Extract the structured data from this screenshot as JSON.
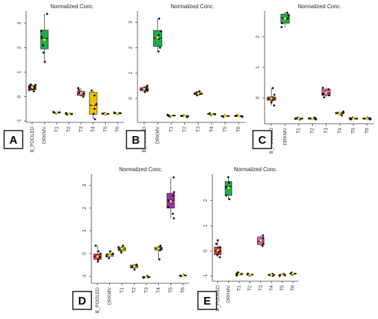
{
  "chart_data": [
    {
      "panel_label": "A",
      "type": "boxplot",
      "title": "Normalized Conc.",
      "categories": [
        "B_POOLED",
        "DRKMV",
        "T1",
        "T2",
        "T3",
        "T4",
        "T5",
        "T6"
      ],
      "y_ticks": [
        -1,
        0,
        1,
        2,
        3
      ],
      "ylim": [
        -1.05,
        3.5
      ],
      "grid": false,
      "boxes": [
        {
          "q1": 0.28,
          "median": 0.36,
          "q3": 0.45,
          "lo": 0.22,
          "hi": 0.5,
          "mean": 0.38,
          "color": "#e8334a",
          "points": [
            0.22,
            0.27,
            0.3,
            0.34,
            0.37,
            0.4,
            0.44,
            0.48,
            0.5
          ]
        },
        {
          "q1": 1.95,
          "median": 2.38,
          "q3": 2.72,
          "lo": 1.42,
          "hi": 3.38,
          "mean": 2.33,
          "color": "#19b04b",
          "points": [
            1.42,
            1.8,
            2.1,
            2.35,
            2.45,
            2.68,
            3.38
          ]
        },
        {
          "q1": -0.67,
          "median": -0.65,
          "q3": -0.63,
          "lo": -0.68,
          "hi": -0.62,
          "mean": -0.65,
          "color": "#f2c200",
          "points": [
            -0.68,
            -0.66,
            -0.64,
            -0.62
          ]
        },
        {
          "q1": -0.72,
          "median": -0.7,
          "q3": -0.68,
          "lo": -0.73,
          "hi": -0.67,
          "mean": -0.7,
          "color": "#f2c200",
          "points": [
            -0.73,
            -0.71,
            -0.69,
            -0.67
          ]
        },
        {
          "q1": 0.05,
          "median": 0.12,
          "q3": 0.22,
          "lo": 0.0,
          "hi": 0.35,
          "mean": 0.13,
          "color": "#e65ad2",
          "points": [
            0.0,
            0.08,
            0.12,
            0.18,
            0.28,
            0.35
          ]
        },
        {
          "q1": -0.72,
          "median": -0.35,
          "q3": 0.18,
          "lo": -0.92,
          "hi": 0.25,
          "mean": -0.3,
          "color": "#f2c200",
          "points": [
            -0.92,
            -0.7,
            -0.5,
            -0.3,
            0.05,
            0.25
          ]
        },
        {
          "q1": -0.72,
          "median": -0.7,
          "q3": -0.68,
          "lo": -0.73,
          "hi": -0.67,
          "mean": -0.7,
          "color": "#f2c200",
          "points": [
            -0.73,
            -0.71,
            -0.69,
            -0.67
          ]
        },
        {
          "q1": -0.7,
          "median": -0.68,
          "q3": -0.66,
          "lo": -0.71,
          "hi": -0.65,
          "mean": -0.68,
          "color": "#f2c200",
          "points": [
            -0.71,
            -0.69,
            -0.67,
            -0.65
          ]
        }
      ]
    },
    {
      "panel_label": "B",
      "type": "boxplot",
      "title": "Normalized Conc.",
      "categories": [
        "B_POOLED",
        "DRKMV",
        "T1",
        "T2",
        "T3",
        "T4",
        "T5",
        "T6"
      ],
      "y_ticks": [
        0,
        1,
        2,
        3
      ],
      "ylim": [
        -0.95,
        3.45
      ],
      "grid": false,
      "boxes": [
        {
          "q1": 0.3,
          "median": 0.36,
          "q3": 0.42,
          "lo": 0.25,
          "hi": 0.5,
          "mean": 0.37,
          "color": "#e8334a",
          "points": [
            0.25,
            0.3,
            0.34,
            0.38,
            0.42,
            0.46,
            0.5
          ]
        },
        {
          "q1": 2.05,
          "median": 2.38,
          "q3": 2.68,
          "lo": 1.85,
          "hi": 3.15,
          "mean": 2.4,
          "color": "#19b04b",
          "points": [
            1.85,
            2.0,
            2.35,
            2.5,
            2.65,
            3.15
          ]
        },
        {
          "q1": -0.7,
          "median": -0.68,
          "q3": -0.66,
          "lo": -0.72,
          "hi": -0.65,
          "mean": -0.68,
          "color": "#f2c200",
          "points": [
            -0.72,
            -0.7,
            -0.67,
            -0.65
          ]
        },
        {
          "q1": -0.72,
          "median": -0.7,
          "q3": -0.68,
          "lo": -0.74,
          "hi": -0.67,
          "mean": -0.7,
          "color": "#f2c200",
          "points": [
            -0.74,
            -0.71,
            -0.69,
            -0.67
          ]
        },
        {
          "q1": 0.15,
          "median": 0.18,
          "q3": 0.22,
          "lo": 0.12,
          "hi": 0.28,
          "mean": 0.19,
          "color": "#f2c200",
          "points": [
            0.12,
            0.16,
            0.2,
            0.24,
            0.28
          ]
        },
        {
          "q1": -0.64,
          "median": -0.62,
          "q3": -0.6,
          "lo": -0.66,
          "hi": -0.59,
          "mean": -0.62,
          "color": "#f2c200",
          "points": [
            -0.66,
            -0.63,
            -0.61,
            -0.59
          ]
        },
        {
          "q1": -0.72,
          "median": -0.7,
          "q3": -0.68,
          "lo": -0.73,
          "hi": -0.67,
          "mean": -0.7,
          "color": "#f2c200",
          "points": [
            -0.73,
            -0.71,
            -0.69,
            -0.67
          ]
        },
        {
          "q1": -0.72,
          "median": -0.7,
          "q3": -0.68,
          "lo": -0.73,
          "hi": -0.67,
          "mean": -0.7,
          "color": "#f2c200",
          "points": [
            -0.73,
            -0.71,
            -0.69,
            -0.67
          ]
        }
      ]
    },
    {
      "panel_label": "C",
      "type": "boxplot",
      "title": "Normalized Conc.",
      "categories": [
        "B_POOLED",
        "DRKMV",
        "T1",
        "T2",
        "T3",
        "T4",
        "T5",
        "T6"
      ],
      "y_ticks": [
        0,
        1,
        2
      ],
      "ylim": [
        -0.85,
        2.85
      ],
      "grid": false,
      "boxes": [
        {
          "q1": -0.08,
          "median": -0.03,
          "q3": 0.03,
          "lo": -0.25,
          "hi": 0.32,
          "mean": -0.02,
          "color": "#e8334a",
          "points": [
            -0.25,
            -0.15,
            -0.08,
            -0.03,
            0.02,
            0.1,
            0.32
          ]
        },
        {
          "q1": 2.45,
          "median": 2.62,
          "q3": 2.75,
          "lo": 2.32,
          "hi": 2.82,
          "mean": 2.6,
          "color": "#19b04b",
          "points": [
            2.32,
            2.45,
            2.6,
            2.7,
            2.8
          ]
        },
        {
          "q1": -0.7,
          "median": -0.68,
          "q3": -0.66,
          "lo": -0.71,
          "hi": -0.65,
          "mean": -0.68,
          "color": "#f2c200",
          "points": [
            -0.71,
            -0.69,
            -0.67,
            -0.65
          ]
        },
        {
          "q1": -0.7,
          "median": -0.68,
          "q3": -0.66,
          "lo": -0.71,
          "hi": -0.65,
          "mean": -0.68,
          "color": "#f2c200",
          "points": [
            -0.71,
            -0.69,
            -0.67,
            -0.65
          ]
        },
        {
          "q1": 0.08,
          "median": 0.15,
          "q3": 0.28,
          "lo": 0.02,
          "hi": 0.33,
          "mean": 0.17,
          "color": "#e65ad2",
          "points": [
            0.02,
            0.08,
            0.12,
            0.2,
            0.28,
            0.33
          ]
        },
        {
          "q1": -0.53,
          "median": -0.5,
          "q3": -0.47,
          "lo": -0.58,
          "hi": -0.45,
          "mean": -0.5,
          "color": "#f2c200",
          "points": [
            -0.58,
            -0.52,
            -0.48,
            -0.45
          ]
        },
        {
          "q1": -0.7,
          "median": -0.68,
          "q3": -0.66,
          "lo": -0.71,
          "hi": -0.65,
          "mean": -0.68,
          "color": "#f2c200",
          "points": [
            -0.71,
            -0.69,
            -0.67,
            -0.65
          ]
        },
        {
          "q1": -0.7,
          "median": -0.68,
          "q3": -0.66,
          "lo": -0.71,
          "hi": -0.65,
          "mean": -0.68,
          "color": "#f2c200",
          "points": [
            -0.71,
            -0.69,
            -0.67,
            -0.65
          ]
        }
      ]
    },
    {
      "panel_label": "D",
      "type": "boxplot",
      "title": "Normalized Conc.",
      "categories": [
        "B_POOLED",
        "DRKMV",
        "T1",
        "T2",
        "T3",
        "T4",
        "T5",
        "T6"
      ],
      "y_ticks": [
        -1,
        0,
        1,
        2,
        3
      ],
      "ylim": [
        -1.3,
        3.5
      ],
      "grid": false,
      "boxes": [
        {
          "q1": -0.25,
          "median": -0.12,
          "q3": -0.02,
          "lo": -0.35,
          "hi": 0.35,
          "mean": -0.12,
          "color": "#e8334a",
          "points": [
            -0.35,
            -0.25,
            -0.15,
            -0.08,
            0.0,
            0.1,
            0.35
          ]
        },
        {
          "q1": -0.12,
          "median": -0.05,
          "q3": 0.0,
          "lo": -0.2,
          "hi": 0.1,
          "mean": -0.06,
          "color": "#f2c200",
          "points": [
            -0.2,
            -0.12,
            -0.05,
            0.0,
            0.1
          ]
        },
        {
          "q1": 0.12,
          "median": 0.2,
          "q3": 0.28,
          "lo": 0.05,
          "hi": 0.35,
          "mean": 0.2,
          "color": "#f2c200",
          "points": [
            0.05,
            0.15,
            0.2,
            0.28,
            0.35
          ]
        },
        {
          "q1": -0.62,
          "median": -0.55,
          "q3": -0.5,
          "lo": -0.7,
          "hi": -0.45,
          "mean": -0.56,
          "color": "#f2c200",
          "points": [
            -0.7,
            -0.6,
            -0.55,
            -0.48
          ]
        },
        {
          "q1": -1.05,
          "median": -1.03,
          "q3": -1.0,
          "lo": -1.06,
          "hi": -0.98,
          "mean": -1.03,
          "color": "#f2c200",
          "points": [
            -1.06,
            -1.04,
            -1.02,
            -0.98
          ]
        },
        {
          "q1": 0.15,
          "median": 0.22,
          "q3": 0.28,
          "lo": -0.25,
          "hi": 0.35,
          "mean": 0.22,
          "color": "#f2c200",
          "points": [
            -0.25,
            0.15,
            0.22,
            0.3,
            0.35
          ]
        },
        {
          "q1": 2.0,
          "median": 2.35,
          "q3": 2.65,
          "lo": 1.55,
          "hi": 3.35,
          "mean": 2.3,
          "color": "#9b2fae",
          "points": [
            1.55,
            1.75,
            2.05,
            2.3,
            2.55,
            2.7,
            3.35
          ]
        },
        {
          "q1": -0.98,
          "median": -0.96,
          "q3": -0.94,
          "lo": -0.99,
          "hi": -0.93,
          "mean": -0.96,
          "color": "#f2c200",
          "points": [
            -0.99,
            -0.97,
            -0.95,
            -0.93
          ]
        }
      ]
    },
    {
      "panel_label": "E",
      "type": "boxplot",
      "title": "Normalized Conc.",
      "categories": [
        "B_POOLED",
        "DRKMV",
        "T1",
        "T2",
        "T3",
        "T4",
        "T5",
        "T6"
      ],
      "y_ticks": [
        -1,
        0,
        1,
        2
      ],
      "ylim": [
        -1.2,
        3.05
      ],
      "grid": false,
      "boxes": [
        {
          "q1": -0.15,
          "median": 0.0,
          "q3": 0.15,
          "lo": -0.25,
          "hi": 0.42,
          "mean": 0.02,
          "color": "#e8334a",
          "points": [
            -0.25,
            -0.15,
            -0.05,
            0.05,
            0.15,
            0.28,
            0.42
          ]
        },
        {
          "q1": 2.2,
          "median": 2.55,
          "q3": 2.75,
          "lo": 2.05,
          "hi": 2.92,
          "mean": 2.5,
          "color": "#19b04b",
          "points": [
            2.05,
            2.2,
            2.5,
            2.7,
            2.92
          ]
        },
        {
          "q1": -0.95,
          "median": -0.92,
          "q3": -0.88,
          "lo": -0.98,
          "hi": -0.85,
          "mean": -0.92,
          "color": "#f2c200",
          "points": [
            -0.98,
            -0.93,
            -0.9,
            -0.85
          ]
        },
        {
          "q1": -0.96,
          "median": -0.94,
          "q3": -0.92,
          "lo": -0.98,
          "hi": -0.9,
          "mean": -0.94,
          "color": "#f2c200",
          "points": [
            -0.98,
            -0.95,
            -0.93,
            -0.9
          ]
        },
        {
          "q1": 0.25,
          "median": 0.38,
          "q3": 0.55,
          "lo": 0.2,
          "hi": 0.62,
          "mean": 0.4,
          "color": "#e65ad2",
          "points": [
            0.2,
            0.28,
            0.38,
            0.5,
            0.62
          ]
        },
        {
          "q1": -0.97,
          "median": -0.95,
          "q3": -0.93,
          "lo": -0.99,
          "hi": -0.91,
          "mean": -0.95,
          "color": "#f2c200",
          "points": [
            -0.99,
            -0.96,
            -0.94,
            -0.91
          ]
        },
        {
          "q1": -0.97,
          "median": -0.95,
          "q3": -0.93,
          "lo": -0.99,
          "hi": -0.91,
          "mean": -0.95,
          "color": "#f2c200",
          "points": [
            -0.99,
            -0.96,
            -0.94,
            -0.91
          ]
        },
        {
          "q1": -0.92,
          "median": -0.9,
          "q3": -0.88,
          "lo": -0.94,
          "hi": -0.86,
          "mean": -0.9,
          "color": "#f2c200",
          "points": [
            -0.94,
            -0.91,
            -0.89,
            -0.86
          ]
        }
      ]
    }
  ]
}
